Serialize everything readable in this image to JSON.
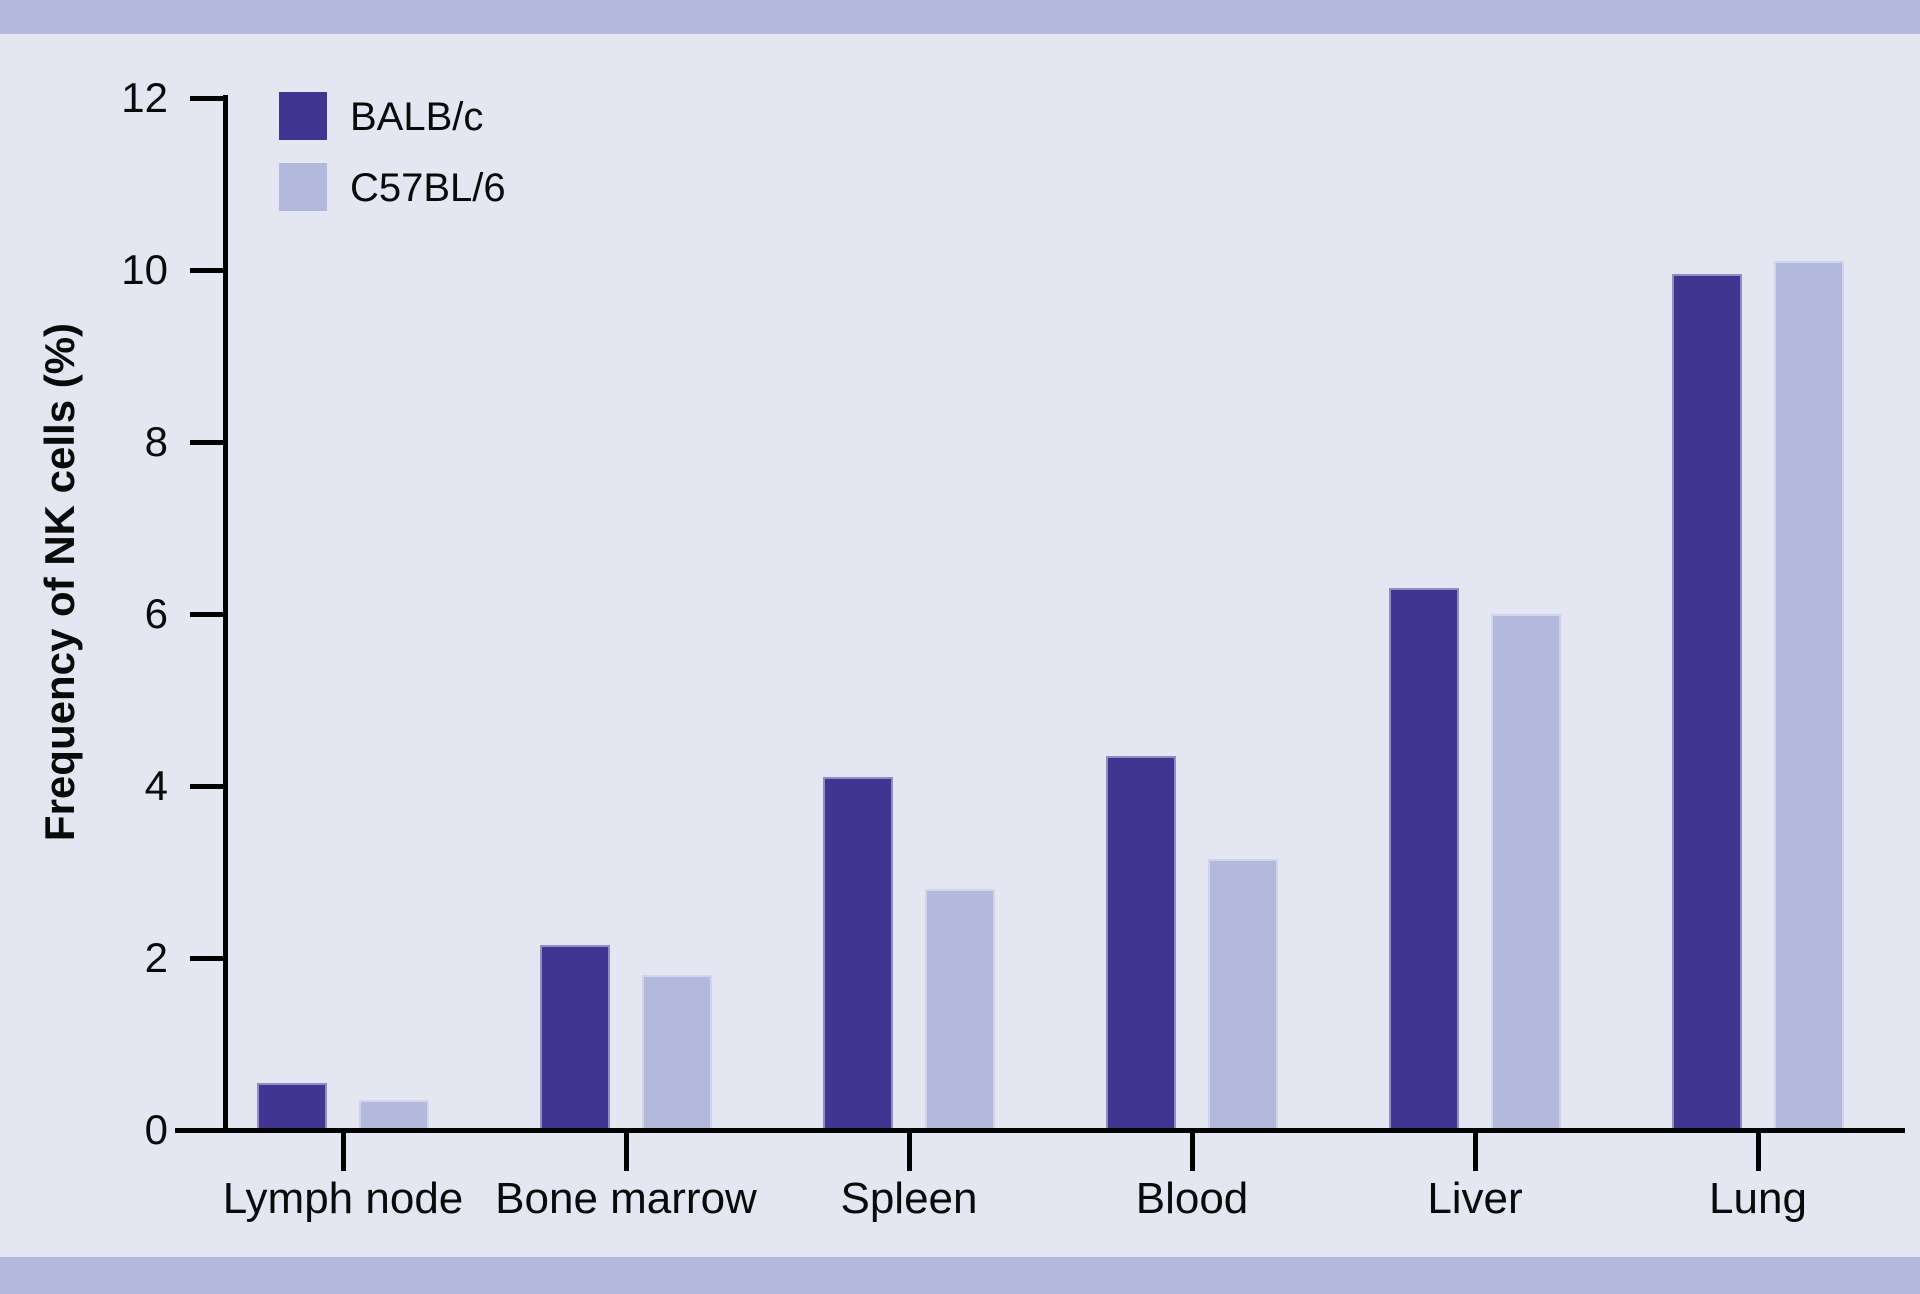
{
  "chart_data": {
    "type": "bar",
    "title": "",
    "ylabel": "Frequency of NK cells (%)",
    "xlabel": "",
    "ylim": [
      0,
      12
    ],
    "yticks": [
      0,
      2,
      4,
      6,
      8,
      10,
      12
    ],
    "grid": false,
    "legend_position": "top-left",
    "categories": [
      "Lymph node",
      "Bone marrow",
      "Spleen",
      "Blood",
      "Liver",
      "Lung"
    ],
    "series": [
      {
        "name": "BALB/c",
        "color": "#423491",
        "values": [
          0.55,
          2.15,
          4.1,
          4.35,
          6.3,
          9.95
        ]
      },
      {
        "name": "C57BL/6",
        "color": "#b3b9dc",
        "values": [
          0.35,
          1.8,
          2.8,
          3.15,
          6.0,
          10.1
        ]
      }
    ]
  },
  "colors": {
    "background": "#e4e6f1",
    "band": "#b3b9dc",
    "axis": "#000000",
    "text": "#0a0a0a"
  }
}
